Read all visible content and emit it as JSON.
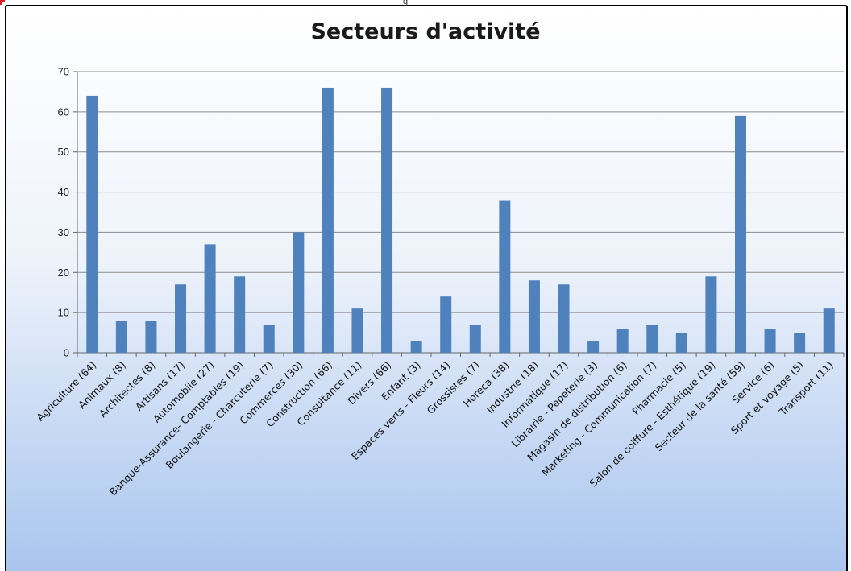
{
  "header": {
    "tab_label": "g"
  },
  "colors": {
    "bar": "#4f81bd",
    "accent": "#e02020"
  },
  "chart_data": {
    "type": "bar",
    "title": "Secteurs d'activité",
    "xlabel": "",
    "ylabel": "",
    "ylim": [
      0,
      70
    ],
    "y_ticks": [
      0,
      10,
      20,
      30,
      40,
      50,
      60,
      70
    ],
    "grid": true,
    "legend": "none",
    "categories": [
      "Agriculture  (64)",
      "Animaux (8)",
      "Architectes (8)",
      "Artisans (17)",
      "Automobile (27)",
      "Banque-Assurance- Comptables  (19)",
      "Boulangerie - Charcuterie (7)",
      "Commerces (30)",
      "Construction (66)",
      "Consultance (11)",
      "Divers (66)",
      "Enfant (3)",
      "Espaces verts - Fleurs (14)",
      "Grossistes (7)",
      "Horeca (38)",
      "Industrie (18)",
      "Informatique (17)",
      "Librairie - Pepeterie (3)",
      "Magasin de distribution (6)",
      "Marketing - Communication  (7)",
      "Pharmacie (5)",
      "Salon de coiffure - Esthétique (19)",
      "Secteur de la santé  (59)",
      "Service (6)",
      "Sport et voyage (5)",
      "Transport (11)"
    ],
    "values": [
      64,
      8,
      8,
      17,
      27,
      19,
      7,
      30,
      66,
      11,
      66,
      3,
      14,
      7,
      38,
      18,
      17,
      3,
      6,
      7,
      5,
      19,
      59,
      6,
      5,
      11
    ]
  }
}
